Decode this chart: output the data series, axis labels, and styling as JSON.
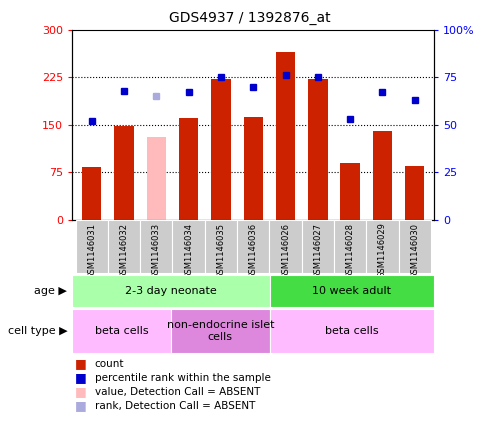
{
  "title": "GDS4937 / 1392876_at",
  "samples": [
    "GSM1146031",
    "GSM1146032",
    "GSM1146033",
    "GSM1146034",
    "GSM1146035",
    "GSM1146036",
    "GSM1146026",
    "GSM1146027",
    "GSM1146028",
    "GSM1146029",
    "GSM1146030"
  ],
  "counts": [
    83,
    148,
    130,
    160,
    222,
    163,
    265,
    222,
    90,
    140,
    85
  ],
  "ranks": [
    52,
    68,
    65,
    67,
    75,
    70,
    76,
    75,
    53,
    67,
    63
  ],
  "absent_bar": [
    false,
    false,
    true,
    false,
    false,
    false,
    false,
    false,
    false,
    false,
    false
  ],
  "absent_rank": [
    false,
    false,
    true,
    false,
    false,
    false,
    false,
    false,
    false,
    false,
    false
  ],
  "bar_color_normal": "#cc2200",
  "bar_color_absent": "#ffbbbb",
  "rank_color_normal": "#0000cc",
  "rank_color_absent": "#aaaadd",
  "ylim_left": [
    0,
    300
  ],
  "ylim_right": [
    0,
    100
  ],
  "yticks_left": [
    0,
    75,
    150,
    225,
    300
  ],
  "ytick_labels_left": [
    "0",
    "75",
    "150",
    "225",
    "300"
  ],
  "yticks_right": [
    0,
    25,
    50,
    75,
    100
  ],
  "ytick_labels_right": [
    "0",
    "25",
    "50",
    "75",
    "100%"
  ],
  "hlines": [
    75,
    150,
    225
  ],
  "age_groups": [
    {
      "label": "2-3 day neonate",
      "start": 0,
      "end": 6,
      "color": "#aaffaa"
    },
    {
      "label": "10 week adult",
      "start": 6,
      "end": 11,
      "color": "#44dd44"
    }
  ],
  "cell_groups": [
    {
      "label": "beta cells",
      "start": 0,
      "end": 3,
      "color": "#ffbbff"
    },
    {
      "label": "non-endocrine islet\ncells",
      "start": 3,
      "end": 6,
      "color": "#dd88dd"
    },
    {
      "label": "beta cells",
      "start": 6,
      "end": 11,
      "color": "#ffbbff"
    }
  ],
  "legend_items": [
    {
      "label": "count",
      "color": "#cc2200"
    },
    {
      "label": "percentile rank within the sample",
      "color": "#0000cc"
    },
    {
      "label": "value, Detection Call = ABSENT",
      "color": "#ffbbbb"
    },
    {
      "label": "rank, Detection Call = ABSENT",
      "color": "#aaaadd"
    }
  ],
  "age_label": "age",
  "cell_label": "cell type",
  "tick_area_color": "#cccccc",
  "bg_color": "#ffffff"
}
